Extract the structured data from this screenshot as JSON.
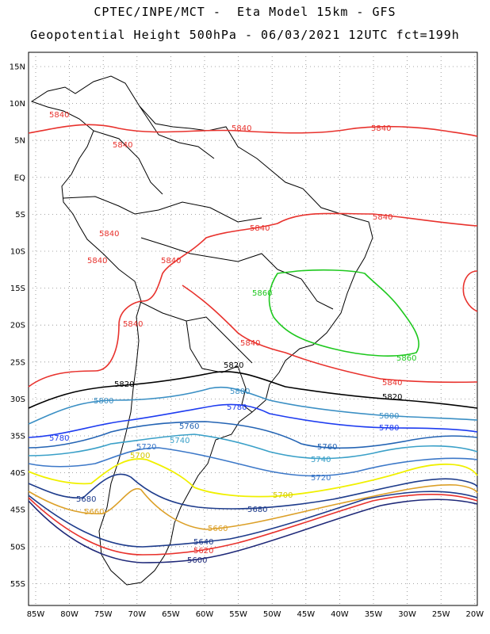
{
  "header": {
    "line1": "CPTEC/INPE/MCT -  Eta Model 15km - GFS",
    "line2": "Geopotential Height 500hPa - 06/03/2021 12UTC fct=199h"
  },
  "map": {
    "lat_ticks": [
      "15N",
      "10N",
      "5N",
      "EQ",
      "5S",
      "10S",
      "15S",
      "20S",
      "25S",
      "30S",
      "35S",
      "40S",
      "45S",
      "50S",
      "55S"
    ],
    "lon_ticks": [
      "85W",
      "80W",
      "75W",
      "70W",
      "65W",
      "60W",
      "55W",
      "50W",
      "45W",
      "40W",
      "35W",
      "30W",
      "25W",
      "20W"
    ],
    "grid": "dotted",
    "land_border_color": "#000000"
  },
  "contours": [
    {
      "level": "5840",
      "color": "#e8322d",
      "labels": [
        "5840",
        "5840",
        "5840",
        "5840",
        "5840",
        "5840",
        "5840",
        "5840",
        "5840",
        "5840",
        "5840",
        "5840"
      ]
    },
    {
      "level": "5860",
      "color": "#1ec81e",
      "labels": [
        "5860",
        "5860"
      ]
    },
    {
      "level": "5820",
      "color": "#000000",
      "labels": [
        "5820",
        "5820",
        "5820"
      ]
    },
    {
      "level": "5800",
      "color": "#3a8fc4",
      "labels": [
        "5800",
        "5800",
        "5800"
      ]
    },
    {
      "level": "5780",
      "color": "#1e3cf0",
      "labels": [
        "5780",
        "5780",
        "5780"
      ]
    },
    {
      "level": "5760",
      "color": "#2464b4",
      "labels": [
        "5760",
        "5760"
      ]
    },
    {
      "level": "5740",
      "color": "#3aa0c8",
      "labels": [
        "5740",
        "5740"
      ]
    },
    {
      "level": "5720",
      "color": "#3c78c8",
      "labels": [
        "5720",
        "5720"
      ]
    },
    {
      "level": "5700",
      "color": "#f0f000",
      "labels": [
        "5700",
        "5700"
      ]
    },
    {
      "level": "5680",
      "color": "#1e3c8c",
      "labels": [
        "5680",
        "5680"
      ]
    },
    {
      "level": "5660",
      "color": "#dca028",
      "labels": [
        "5660",
        "5660"
      ]
    },
    {
      "level": "5640",
      "color": "#1e3c8c",
      "labels": [
        "5640"
      ]
    },
    {
      "level": "5620",
      "color": "#e8322d",
      "labels": [
        "5620"
      ]
    },
    {
      "level": "5600",
      "color": "#1e2878",
      "labels": [
        "5600"
      ]
    }
  ]
}
